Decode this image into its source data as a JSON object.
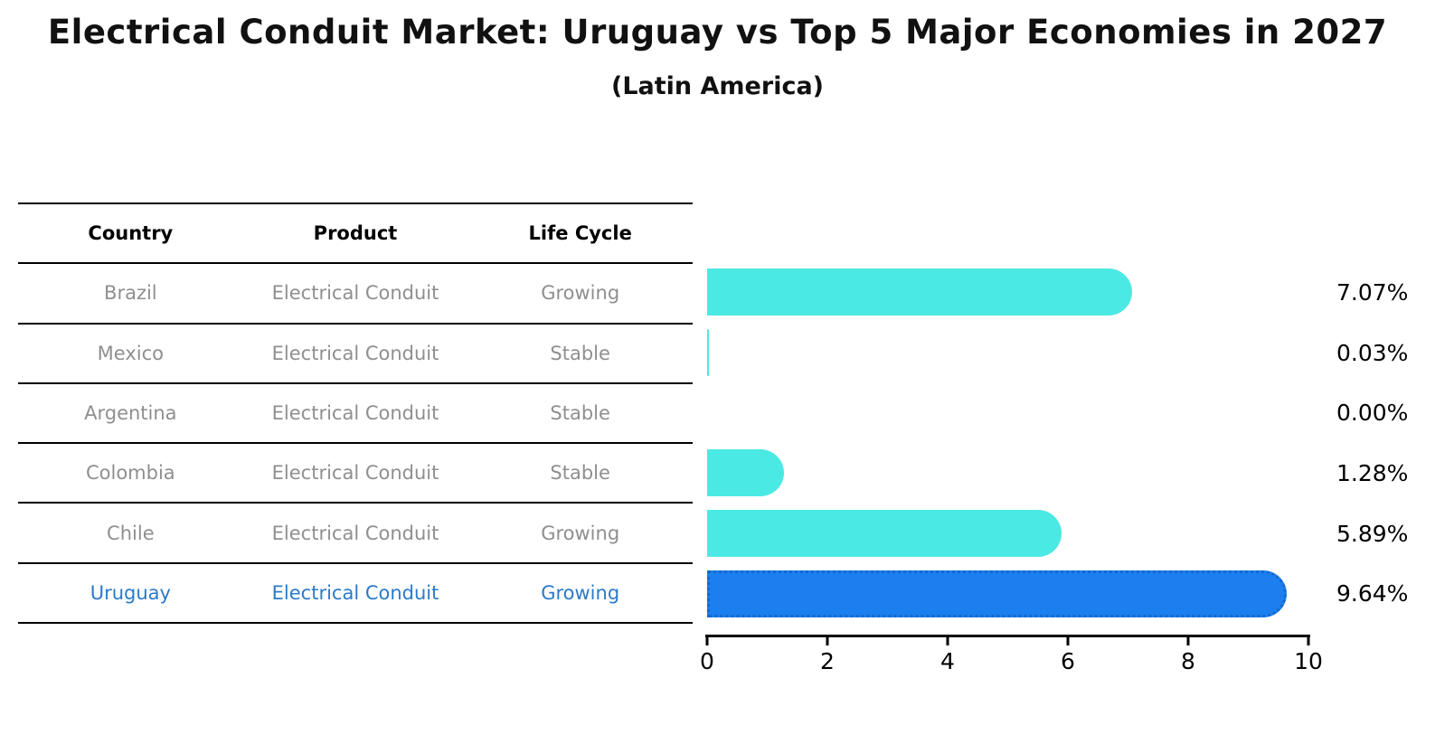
{
  "title": "Electrical Conduit Market: Uruguay vs Top 5 Major Economies in 2027",
  "subtitle": "(Latin America)",
  "table": {
    "headers": [
      "Country",
      "Product",
      "Life Cycle"
    ],
    "rows": [
      {
        "country": "Brazil",
        "product": "Electrical Conduit",
        "life_cycle": "Growing"
      },
      {
        "country": "Mexico",
        "product": "Electrical Conduit",
        "life_cycle": "Stable"
      },
      {
        "country": "Argentina",
        "product": "Electrical Conduit",
        "life_cycle": "Stable"
      },
      {
        "country": "Colombia",
        "product": "Electrical Conduit",
        "life_cycle": "Stable"
      },
      {
        "country": "Chile",
        "product": "Electrical Conduit",
        "life_cycle": "Growing"
      },
      {
        "country": "Uruguay",
        "product": "Electrical Conduit",
        "life_cycle": "Growing"
      }
    ]
  },
  "chart_data": {
    "type": "bar",
    "orientation": "horizontal",
    "title": "Electrical Conduit Market: Uruguay vs Top 5 Major Economies in 2027",
    "subtitle": "(Latin America)",
    "categories": [
      "Brazil",
      "Mexico",
      "Argentina",
      "Colombia",
      "Chile",
      "Uruguay"
    ],
    "values": [
      7.07,
      0.03,
      0.0,
      1.28,
      5.89,
      9.64
    ],
    "value_labels": [
      "7.07%",
      "0.03%",
      "0.00%",
      "1.28%",
      "5.89%",
      "9.64%"
    ],
    "xlim": [
      0,
      10
    ],
    "x_ticks": [
      "0",
      "2",
      "4",
      "6",
      "8",
      "10"
    ],
    "grid": false,
    "legend": false,
    "bar_color": "#4be9e3",
    "highlight_color": "#1b7ff0",
    "highlight_border_color": "#1668cc",
    "highlight_index": 5,
    "highlight_text_color": "#2b7bc8"
  }
}
